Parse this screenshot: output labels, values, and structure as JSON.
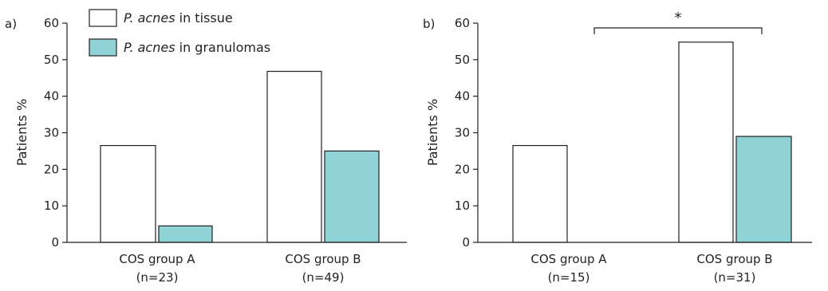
{
  "chart_data": [
    {
      "panel_label": "a)",
      "type": "bar",
      "ylabel": "Patients %",
      "ylim": [
        0,
        60
      ],
      "yticks": [
        "0",
        "10",
        "20",
        "30",
        "40",
        "50",
        "60"
      ],
      "categories": [
        "COS group A",
        "COS group B"
      ],
      "category_n": [
        "(n=23)",
        "(n=49)"
      ],
      "series": [
        {
          "name": "P. acnes in tissue",
          "values": [
            26.5,
            46.8
          ]
        },
        {
          "name": "P. acnes in granulomas",
          "values": [
            4.5,
            25.0
          ]
        }
      ],
      "legend_placement": "top-left",
      "grid": false
    },
    {
      "panel_label": "b)",
      "type": "bar",
      "ylabel": "Patients %",
      "ylim": [
        0,
        60
      ],
      "yticks": [
        "0",
        "10",
        "20",
        "30",
        "40",
        "50",
        "60"
      ],
      "categories": [
        "COS group A",
        "COS group B"
      ],
      "category_n": [
        "(n=15)",
        "(n=31)"
      ],
      "series": [
        {
          "name": "P. acnes in tissue",
          "values": [
            26.5,
            54.8
          ]
        },
        {
          "name": "P. acnes in granulomas",
          "values": [
            0,
            29.0
          ]
        }
      ],
      "significance": {
        "label": "*",
        "between": [
          "COS group A",
          "COS group B"
        ]
      },
      "grid": false
    }
  ],
  "legend": {
    "items": [
      {
        "italic": "P. acnes",
        "rest": " in tissue"
      },
      {
        "italic": "P. acnes",
        "rest": " in granulomas"
      }
    ]
  },
  "colors": {
    "tissue_fill": "#ffffff",
    "granuloma_fill": "#8fd3d6",
    "stroke": "#231f20"
  }
}
